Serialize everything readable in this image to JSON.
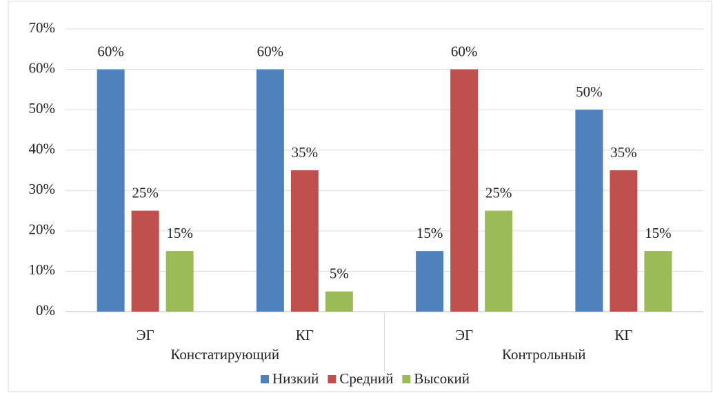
{
  "chart_data": {
    "type": "bar",
    "categories": [
      "ЭГ",
      "КГ",
      "ЭГ",
      "КГ"
    ],
    "groups": [
      "Констатирующий",
      "Контрольный"
    ],
    "series": [
      {
        "name": "Низкий",
        "color": "#4f81bd",
        "values": [
          60,
          60,
          15,
          50
        ],
        "value_labels": [
          "60%",
          "60%",
          "15%",
          "50%"
        ]
      },
      {
        "name": "Средний",
        "color": "#c0504d",
        "values": [
          25,
          35,
          60,
          35
        ],
        "value_labels": [
          "25%",
          "35%",
          "60%",
          "35%"
        ]
      },
      {
        "name": "Высокий",
        "color": "#9bbb59",
        "values": [
          15,
          5,
          25,
          15
        ],
        "value_labels": [
          "15%",
          "5%",
          "25%",
          "15%"
        ]
      }
    ],
    "ylim": [
      0,
      70
    ],
    "yticks": [
      {
        "value": 0,
        "label": "0%"
      },
      {
        "value": 10,
        "label": "10%"
      },
      {
        "value": 20,
        "label": "20%"
      },
      {
        "value": 30,
        "label": "30%"
      },
      {
        "value": 40,
        "label": "40%"
      },
      {
        "value": 50,
        "label": "50%"
      },
      {
        "value": 60,
        "label": "60%"
      },
      {
        "value": 70,
        "label": "70%"
      }
    ],
    "grid": true,
    "legend": "bottom"
  }
}
